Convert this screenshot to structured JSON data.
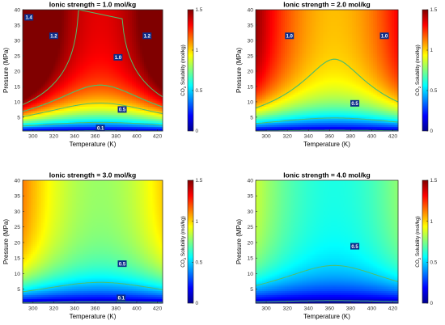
{
  "chart_data": [
    {
      "type": "heatmap",
      "title": "Ionic strength = 1.0 mol/kg",
      "xlabel": "Temperature (K)",
      "ylabel": "Pressure (MPa)",
      "colorbar_label": "CO",
      "colorbar_sub": "2",
      "colorbar_label_rest": " Solubility (mol/kg)",
      "x_ticks": [
        "300",
        "320",
        "340",
        "360",
        "380",
        "400",
        "420"
      ],
      "y_ticks": [
        "5",
        "10",
        "15",
        "20",
        "25",
        "30",
        "35",
        "40"
      ],
      "cb_ticks": [
        "0",
        "0.5",
        "1",
        "1.5"
      ],
      "xlim": [
        290,
        425
      ],
      "ylim": [
        0.5,
        40
      ],
      "clim": [
        0,
        1.5
      ],
      "ionic_strength": 1.0,
      "contours": [
        {
          "level": 0.1,
          "label": "0.1",
          "label_at": [
            365,
            1.5
          ]
        },
        {
          "level": 0.5,
          "label": "0.5",
          "label_at": [
            386,
            7.5
          ]
        },
        {
          "level": 1.0,
          "label": "1.0",
          "label_at": [
            382,
            24.5
          ]
        },
        {
          "level": 1.2,
          "label": "1.2",
          "label_at": [
            320,
            31.5
          ]
        },
        {
          "level": 1.2,
          "label": "1.2",
          "label_at": [
            410,
            31.5
          ]
        },
        {
          "level": 1.4,
          "label": "1.4",
          "label_at": [
            296,
            37.5
          ]
        }
      ]
    },
    {
      "type": "heatmap",
      "title": "Ionic strength = 2.0 mol/kg",
      "xlabel": "Temperature (K)",
      "ylabel": "Pressure (MPa)",
      "colorbar_label": "CO",
      "colorbar_sub": "2",
      "colorbar_label_rest": " Solubility (mol/kg)",
      "x_ticks": [
        "300",
        "320",
        "340",
        "360",
        "380",
        "400",
        "420"
      ],
      "y_ticks": [
        "5",
        "10",
        "15",
        "20",
        "25",
        "30",
        "35",
        "40"
      ],
      "cb_ticks": [
        "0",
        "0.5",
        "1",
        "1.5"
      ],
      "xlim": [
        290,
        425
      ],
      "ylim": [
        0.5,
        40
      ],
      "clim": [
        0,
        1.5
      ],
      "ionic_strength": 2.0,
      "contours": [
        {
          "level": 0.1,
          "label": "",
          "label_at": null
        },
        {
          "level": 0.5,
          "label": "0.5",
          "label_at": [
            384,
            9.5
          ]
        },
        {
          "level": 1.0,
          "label": "1.0",
          "label_at": [
            322,
            31.5
          ]
        },
        {
          "level": 1.0,
          "label": "1.0",
          "label_at": [
            412,
            31.5
          ]
        }
      ]
    },
    {
      "type": "heatmap",
      "title": "Ionic strength = 3.0 mol/kg",
      "xlabel": "Temperature (K)",
      "ylabel": "Pressure (MPa)",
      "colorbar_label": "CO",
      "colorbar_sub": "2",
      "colorbar_label_rest": " Solubility (mol/kg)",
      "x_ticks": [
        "300",
        "320",
        "340",
        "360",
        "380",
        "400",
        "420"
      ],
      "y_ticks": [
        "5",
        "10",
        "15",
        "20",
        "25",
        "30",
        "35",
        "40"
      ],
      "cb_ticks": [
        "0",
        "0.5",
        "1",
        "1.5"
      ],
      "xlim": [
        290,
        425
      ],
      "ylim": [
        0.5,
        40
      ],
      "clim": [
        0,
        1.5
      ],
      "ionic_strength": 3.0,
      "contours": [
        {
          "level": 0.1,
          "label": "0.1",
          "label_at": [
            385,
            2.2
          ]
        },
        {
          "level": 0.5,
          "label": "0.5",
          "label_at": [
            386,
            13.2
          ]
        }
      ]
    },
    {
      "type": "heatmap",
      "title": "Ionic strength = 4.0 mol/kg",
      "xlabel": "Temperature (K)",
      "ylabel": "Pressure (MPa)",
      "colorbar_label": "CO",
      "colorbar_sub": "2",
      "colorbar_label_rest": " Solubility (mol/kg)",
      "x_ticks": [
        "300",
        "320",
        "340",
        "360",
        "380",
        "400",
        "420"
      ],
      "y_ticks": [
        "5",
        "10",
        "15",
        "20",
        "25",
        "30",
        "35",
        "40"
      ],
      "cb_ticks": [
        "0",
        "0.5",
        "1",
        "1.5"
      ],
      "xlim": [
        290,
        425
      ],
      "ylim": [
        0.5,
        40
      ],
      "clim": [
        0,
        1.5
      ],
      "ionic_strength": 4.0,
      "contours": [
        {
          "level": 0.1,
          "label": "",
          "label_at": null
        },
        {
          "level": 0.5,
          "label": "0.5",
          "label_at": [
            384,
            18.8
          ]
        }
      ]
    }
  ]
}
